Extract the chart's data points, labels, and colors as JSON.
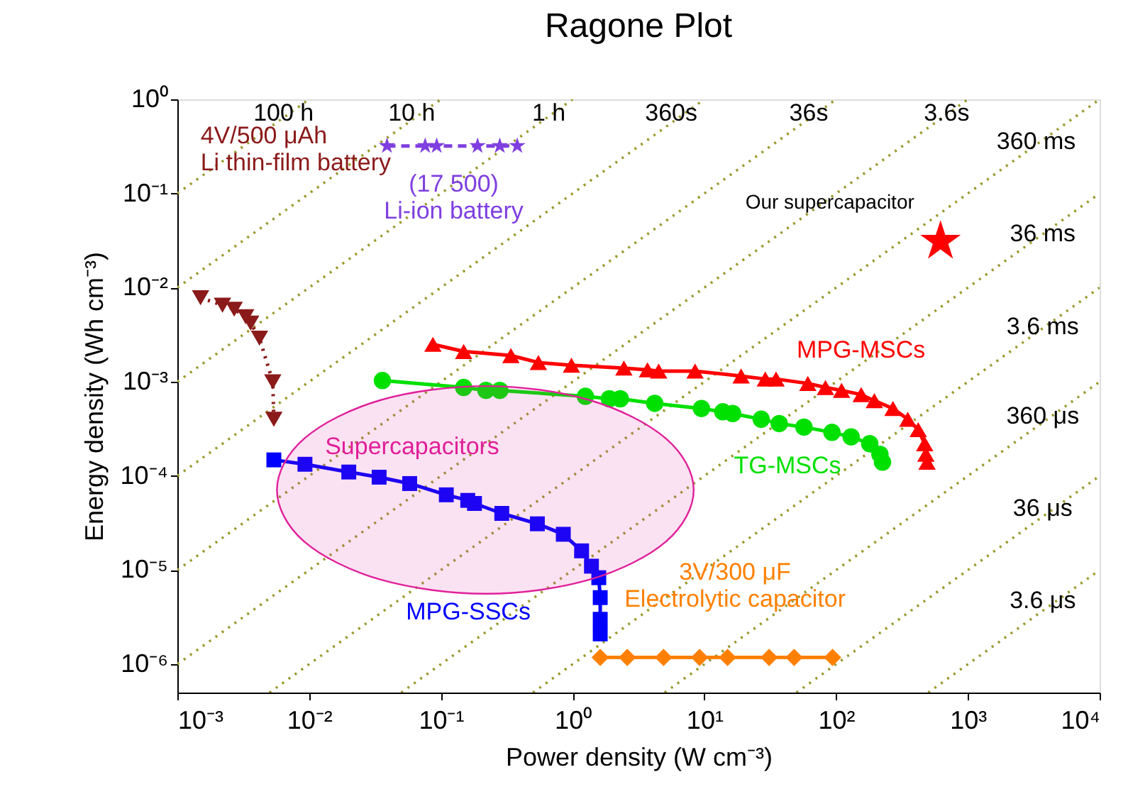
{
  "chart_data": {
    "type": "line",
    "title": "Ragone Plot",
    "xlabel": "Power density (W cm⁻³)",
    "ylabel": "Energy density (Wh cm⁻³)",
    "log": "xy",
    "grid": false,
    "xlim": [
      0.001,
      10000
    ],
    "ylim": [
      5e-07,
      1
    ],
    "xticks": [
      {
        "value": 0.001,
        "label": "10⁻³"
      },
      {
        "value": 0.01,
        "label": "10⁻²"
      },
      {
        "value": 0.1,
        "label": "10⁻¹"
      },
      {
        "value": 1,
        "label": "10⁰"
      },
      {
        "value": 10,
        "label": "10¹"
      },
      {
        "value": 100,
        "label": "10²"
      },
      {
        "value": 1000,
        "label": "10³"
      },
      {
        "value": 10000,
        "label": "10⁴"
      }
    ],
    "yticks": [
      {
        "value": 1e-06,
        "label": "10⁻⁶"
      },
      {
        "value": 1e-05,
        "label": "10⁻⁵"
      },
      {
        "value": 0.0001,
        "label": "10⁻⁴"
      },
      {
        "value": 0.001,
        "label": "10⁻³"
      },
      {
        "value": 0.01,
        "label": "10⁻²"
      },
      {
        "value": 0.1,
        "label": "10⁻¹"
      },
      {
        "value": 1,
        "label": "10⁰"
      }
    ],
    "series": [
      {
        "name": "(17 500)\nLi-ion battery",
        "color": "#7f3fe0",
        "marker": "star",
        "line_style": "dashed",
        "x": [
          0.039,
          0.076,
          0.093,
          0.19,
          0.28,
          0.38
        ],
        "values": [
          0.32,
          0.32,
          0.32,
          0.32,
          0.32,
          0.32
        ]
      },
      {
        "name": "4V/500 μAh\nLi thin-film battery",
        "color": "#8b1a1a",
        "marker": "triangle-down",
        "line_style": "dotted",
        "x": [
          0.0015,
          0.0022,
          0.0027,
          0.0033,
          0.0036,
          0.0042,
          0.0053,
          0.0054
        ],
        "values": [
          0.0078,
          0.0065,
          0.0059,
          0.0049,
          0.0042,
          0.0029,
          0.001,
          0.0004
        ]
      },
      {
        "name": "MPG-MSCs",
        "color": "#ff0000",
        "marker": "triangle",
        "line_style": "solid",
        "x": [
          0.087,
          0.149,
          0.34,
          0.55,
          0.98,
          2.45,
          3.7,
          4.5,
          8.5,
          19,
          29,
          35,
          61,
          83,
          110,
          155,
          195,
          270,
          350,
          420,
          470,
          480,
          490
        ],
        "values": [
          0.0025,
          0.0021,
          0.0019,
          0.0016,
          0.0015,
          0.0014,
          0.00134,
          0.0013,
          0.0013,
          0.00115,
          0.00107,
          0.00107,
          0.00096,
          0.00087,
          0.00081,
          0.00073,
          0.00063,
          0.00052,
          0.0004,
          0.00031,
          0.00022,
          0.00017,
          0.00014
        ]
      },
      {
        "name": "TG-MSCs",
        "color": "#00e000",
        "marker": "circle",
        "line_style": "solid",
        "x": [
          0.036,
          0.149,
          0.22,
          0.28,
          1.25,
          1.9,
          2.3,
          4.2,
          9.5,
          13.8,
          16.4,
          27,
          37,
          57,
          93,
          130,
          180,
          215,
          225
        ],
        "values": [
          0.00103,
          0.00087,
          0.00081,
          0.00081,
          0.0007,
          0.00066,
          0.00066,
          0.00059,
          0.00052,
          0.00048,
          0.00046,
          0.0004,
          0.00036,
          0.00033,
          0.00029,
          0.00026,
          0.00022,
          0.00017,
          0.00014
        ]
      },
      {
        "name": "MPG-SSCs",
        "color": "#0000ff",
        "marker": "square",
        "line_style": "solid",
        "x": [
          0.0054,
          0.0093,
          0.02,
          0.034,
          0.058,
          0.11,
          0.16,
          0.18,
          0.29,
          0.54,
          0.85,
          1.17,
          1.39,
          1.58,
          1.62,
          1.62,
          1.62
        ],
        "values": [
          0.000148,
          0.000133,
          0.00011,
          9.7e-05,
          8.3e-05,
          6.3e-05,
          5.5e-05,
          5.1e-05,
          4e-05,
          3.1e-05,
          2.4e-05,
          1.6e-05,
          1.1e-05,
          8.3e-06,
          5.1e-06,
          3e-06,
          2.1e-06
        ]
      },
      {
        "name": "3V/300 μF\nElectrolytic capacitor",
        "color": "#ff8000",
        "marker": "diamond",
        "line_style": "solid",
        "x": [
          1.62,
          2.6,
          4.9,
          9.2,
          15,
          31,
          48,
          94
        ],
        "values": [
          1.18e-06,
          1.18e-06,
          1.18e-06,
          1.18e-06,
          1.18e-06,
          1.18e-06,
          1.18e-06,
          1.18e-06
        ]
      },
      {
        "name": "Our supercapacitor",
        "type": "scatter",
        "color": "#ff0000",
        "marker": "star",
        "x": [
          620
        ],
        "values": [
          0.031
        ]
      },
      {
        "name": "Supercapacitors",
        "type": "area",
        "color": "#e0209a",
        "x": [
          8.3,
          5.1,
          1.34,
          0.22,
          0.035,
          0.0092,
          0.0057,
          0.0092,
          0.035,
          0.22,
          1.34,
          5.1
        ],
        "values": [
          7.1e-05,
          0.00025,
          0.00064,
          0.0009,
          0.00064,
          0.00025,
          7.1e-05,
          2e-05,
          7.9e-06,
          5.6e-06,
          7.9e-06,
          2e-05
        ]
      },
      {
        "color": "#9a9a30",
        "marker": "none",
        "line_style": "dotted",
        "x": [
          0.001,
          0.01
        ],
        "values": [
          0.1,
          1
        ]
      },
      {
        "color": "#9a9a30",
        "marker": "none",
        "line_style": "dotted",
        "x": [
          0.001,
          0.1
        ],
        "values": [
          0.01,
          1
        ]
      },
      {
        "color": "#9a9a30",
        "marker": "none",
        "line_style": "dotted",
        "x": [
          0.001,
          1
        ],
        "values": [
          0.001,
          1
        ]
      },
      {
        "color": "#9a9a30",
        "marker": "none",
        "line_style": "dotted",
        "x": [
          0.001,
          10
        ],
        "values": [
          0.0001,
          1
        ]
      },
      {
        "color": "#9a9a30",
        "marker": "none",
        "line_style": "dotted",
        "x": [
          0.001,
          100
        ],
        "values": [
          1e-05,
          1
        ]
      },
      {
        "color": "#9a9a30",
        "marker": "none",
        "line_style": "dotted",
        "x": [
          0.001,
          1000
        ],
        "values": [
          1e-06,
          1
        ]
      },
      {
        "color": "#9a9a30",
        "marker": "none",
        "line_style": "dotted",
        "x": [
          0.005,
          10000
        ],
        "values": [
          5e-07,
          1
        ]
      },
      {
        "color": "#9a9a30",
        "marker": "none",
        "line_style": "dotted",
        "x": [
          0.05,
          10000
        ],
        "values": [
          5e-07,
          0.1
        ]
      },
      {
        "color": "#9a9a30",
        "marker": "none",
        "line_style": "dotted",
        "x": [
          0.5,
          10000
        ],
        "values": [
          5e-07,
          0.01
        ]
      },
      {
        "color": "#9a9a30",
        "marker": "none",
        "line_style": "dotted",
        "x": [
          5,
          10000
        ],
        "values": [
          5e-07,
          0.001
        ]
      },
      {
        "color": "#9a9a30",
        "marker": "none",
        "line_style": "dotted",
        "x": [
          50,
          10000
        ],
        "values": [
          5e-07,
          0.0001
        ]
      },
      {
        "color": "#9a9a30",
        "marker": "none",
        "line_style": "dotted",
        "x": [
          500,
          10000
        ],
        "values": [
          5e-07,
          1e-05
        ]
      }
    ],
    "annotations": [
      {
        "text": "100 h",
        "x": 0.0064,
        "y": 0.71
      },
      {
        "text": "10 h",
        "x": 0.06,
        "y": 0.71
      },
      {
        "text": "1 h",
        "x": 0.66,
        "y": 0.71
      },
      {
        "text": "360s",
        "x": 5.6,
        "y": 0.71
      },
      {
        "text": "36s",
        "x": 62,
        "y": 0.71
      },
      {
        "text": "3.6s",
        "x": 690,
        "y": 0.71
      },
      {
        "text": "360 ms",
        "x": 3300,
        "y": 0.35
      },
      {
        "text": "36 ms",
        "x": 3700,
        "y": 0.037
      },
      {
        "text": "3.6 ms",
        "x": 3700,
        "y": 0.0038
      },
      {
        "text": "360 μs",
        "x": 3700,
        "y": 0.00043
      },
      {
        "text": "36 μs",
        "x": 3700,
        "y": 4.5e-05
      },
      {
        "text": "3.6 μs",
        "x": 3700,
        "y": 4.7e-06
      }
    ]
  }
}
